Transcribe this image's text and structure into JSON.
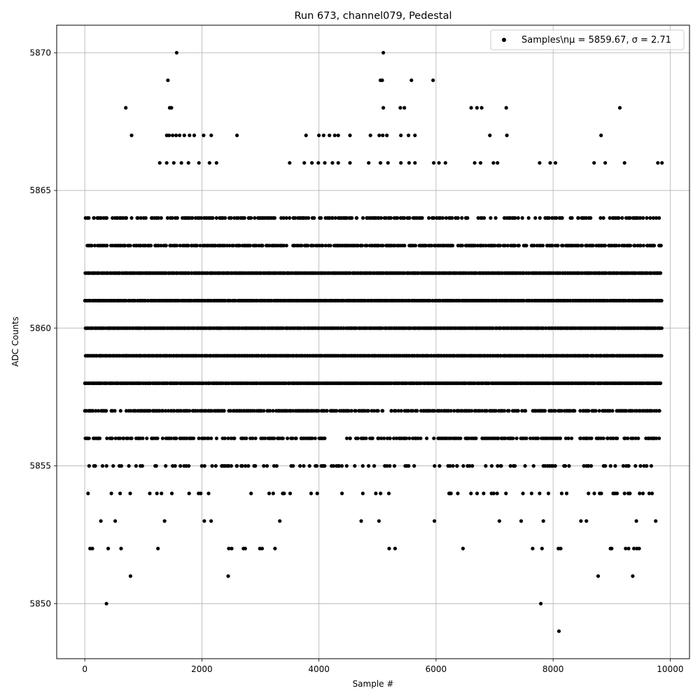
{
  "chart_data": {
    "type": "scatter",
    "title": "Run 673, channel079, Pedestal",
    "xlabel": "Sample #",
    "ylabel": "ADC Counts",
    "xlim": [
      -480,
      10330
    ],
    "ylim": [
      5848,
      5871
    ],
    "xticks": [
      0,
      2000,
      4000,
      6000,
      8000,
      10000
    ],
    "xtick_labels": [
      "0",
      "2000",
      "4000",
      "6000",
      "8000",
      "10000"
    ],
    "yticks": [
      5850,
      5855,
      5860,
      5865,
      5870
    ],
    "ytick_labels": [
      "5850",
      "5855",
      "5860",
      "5865",
      "5870"
    ],
    "grid": true,
    "legend": {
      "placement": "top-right",
      "label": "Samples\\nμ = 5859.67, σ = 2.71"
    },
    "marker_color": "#000000",
    "series": [
      {
        "name": "Samples\\nμ = 5859.67, σ = 2.71",
        "n_points": 9856,
        "mean": 5859.67,
        "std": 2.71,
        "x_range": [
          0,
          9855
        ],
        "band_levels": [
          5853,
          5854,
          5855,
          5856,
          5857,
          5858,
          5859,
          5860,
          5861,
          5862,
          5863,
          5864
        ],
        "points": [
          [
            370,
            5850
          ],
          [
            7790,
            5850
          ],
          [
            8100,
            5849
          ],
          [
            780,
            5851
          ],
          [
            2450,
            5851
          ],
          [
            8770,
            5851
          ],
          [
            9360,
            5851
          ],
          [
            90,
            5852
          ],
          [
            130,
            5852
          ],
          [
            400,
            5852
          ],
          [
            620,
            5852
          ],
          [
            1250,
            5852
          ],
          [
            2460,
            5852
          ],
          [
            2510,
            5852
          ],
          [
            2710,
            5852
          ],
          [
            2740,
            5852
          ],
          [
            2990,
            5852
          ],
          [
            3030,
            5852
          ],
          [
            3250,
            5852
          ],
          [
            5200,
            5852
          ],
          [
            5300,
            5852
          ],
          [
            6460,
            5852
          ],
          [
            7650,
            5852
          ],
          [
            7810,
            5852
          ],
          [
            8090,
            5852
          ],
          [
            8130,
            5852
          ],
          [
            8980,
            5852
          ],
          [
            9000,
            5852
          ],
          [
            9240,
            5852
          ],
          [
            9290,
            5852
          ],
          [
            9380,
            5852
          ],
          [
            9430,
            5852
          ],
          [
            9470,
            5852
          ],
          [
            1570,
            5870
          ],
          [
            5100,
            5870
          ],
          [
            1420,
            5869
          ],
          [
            5050,
            5869
          ],
          [
            5080,
            5869
          ],
          [
            5580,
            5869
          ],
          [
            5950,
            5869
          ],
          [
            700,
            5868
          ],
          [
            1450,
            5868
          ],
          [
            1480,
            5868
          ],
          [
            5100,
            5868
          ],
          [
            5390,
            5868
          ],
          [
            5460,
            5868
          ],
          [
            6600,
            5868
          ],
          [
            6700,
            5868
          ],
          [
            6780,
            5868
          ],
          [
            7200,
            5868
          ],
          [
            9140,
            5868
          ],
          [
            800,
            5867
          ],
          [
            1400,
            5867
          ],
          [
            1440,
            5867
          ],
          [
            1500,
            5867
          ],
          [
            1560,
            5867
          ],
          [
            1620,
            5867
          ],
          [
            1700,
            5867
          ],
          [
            1790,
            5867
          ],
          [
            1870,
            5867
          ],
          [
            2030,
            5867
          ],
          [
            2160,
            5867
          ],
          [
            2600,
            5867
          ],
          [
            3780,
            5867
          ],
          [
            4000,
            5867
          ],
          [
            4080,
            5867
          ],
          [
            4180,
            5867
          ],
          [
            4270,
            5867
          ],
          [
            4330,
            5867
          ],
          [
            4530,
            5867
          ],
          [
            4880,
            5867
          ],
          [
            5030,
            5867
          ],
          [
            5090,
            5867
          ],
          [
            5160,
            5867
          ],
          [
            5400,
            5867
          ],
          [
            5530,
            5867
          ],
          [
            5640,
            5867
          ],
          [
            6920,
            5867
          ],
          [
            7210,
            5867
          ],
          [
            8820,
            5867
          ],
          [
            1280,
            5866
          ],
          [
            1400,
            5866
          ],
          [
            1520,
            5866
          ],
          [
            1650,
            5866
          ],
          [
            1770,
            5866
          ],
          [
            1950,
            5866
          ],
          [
            2130,
            5866
          ],
          [
            2250,
            5866
          ],
          [
            3500,
            5866
          ],
          [
            3750,
            5866
          ],
          [
            3880,
            5866
          ],
          [
            3990,
            5866
          ],
          [
            4100,
            5866
          ],
          [
            4230,
            5866
          ],
          [
            4330,
            5866
          ],
          [
            4530,
            5866
          ],
          [
            4850,
            5866
          ],
          [
            5050,
            5866
          ],
          [
            5180,
            5866
          ],
          [
            5400,
            5866
          ],
          [
            5540,
            5866
          ],
          [
            5640,
            5866
          ],
          [
            5960,
            5866
          ],
          [
            6050,
            5866
          ],
          [
            6160,
            5866
          ],
          [
            6660,
            5866
          ],
          [
            6760,
            5866
          ],
          [
            6980,
            5866
          ],
          [
            7050,
            5866
          ],
          [
            7770,
            5866
          ],
          [
            7950,
            5866
          ],
          [
            8040,
            5866
          ],
          [
            8700,
            5866
          ],
          [
            8890,
            5866
          ],
          [
            9220,
            5866
          ],
          [
            9790,
            5866
          ],
          [
            9860,
            5866
          ]
        ]
      }
    ]
  }
}
